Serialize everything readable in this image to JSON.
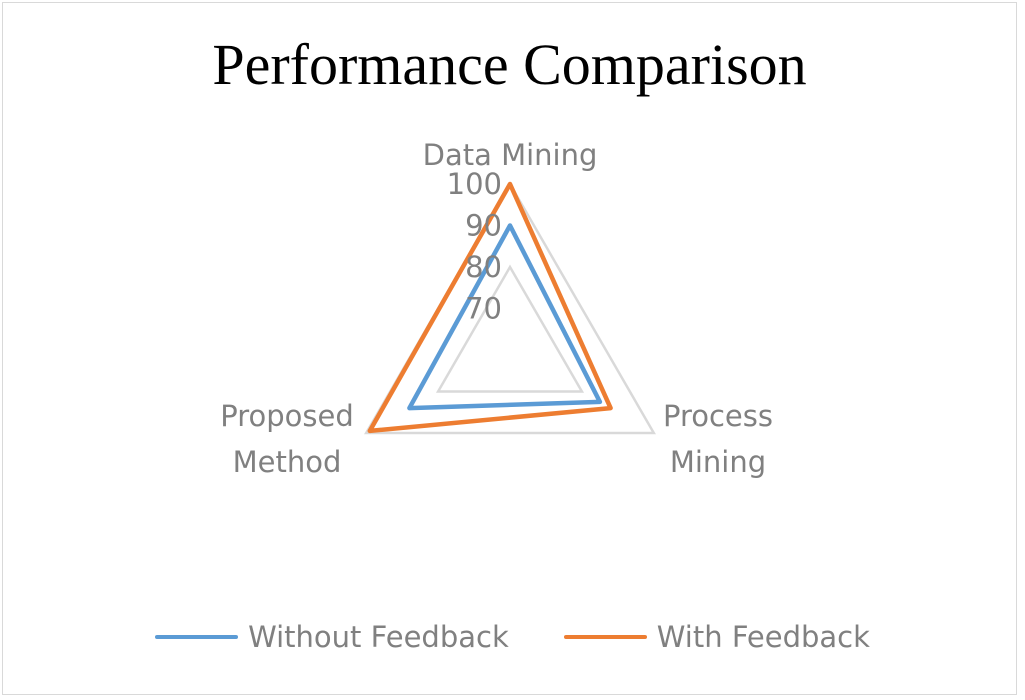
{
  "chart_data": {
    "type": "radar",
    "title": "Performance Comparison",
    "categories": [
      "Data Mining",
      "Process Mining",
      "Proposed\nMethod"
    ],
    "axis": {
      "min": 60,
      "max": 100,
      "tick_labels": [
        70,
        80,
        90,
        100
      ],
      "gridlines": [
        80,
        100
      ]
    },
    "series": [
      {
        "name": "Without Feedback",
        "values": [
          90,
          85,
          88
        ],
        "color": "#5b9bd5"
      },
      {
        "name": "With Feedback",
        "values": [
          100,
          88,
          99
        ],
        "color": "#ed7d31"
      }
    ],
    "legend_position": "bottom",
    "grid_color": "#d9d9d9"
  }
}
